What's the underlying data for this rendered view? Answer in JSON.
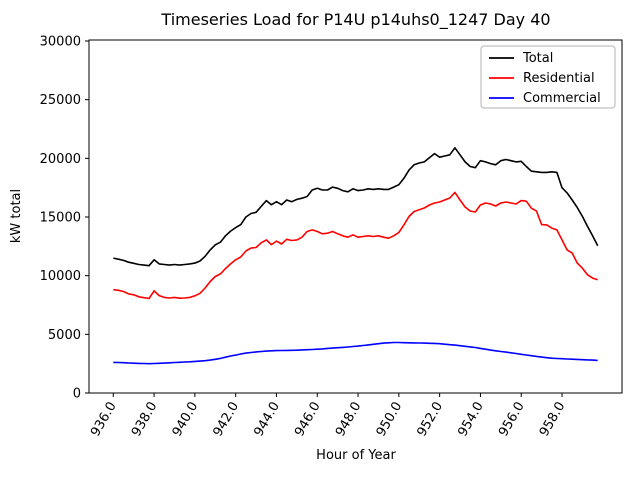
{
  "chart_data": {
    "type": "line",
    "title": "Timeseries Load for P14U p14uhs0_1247  Day 40",
    "xlabel": "Hour of Year",
    "ylabel": "kW total",
    "xlim": [
      934.81,
      960.94
    ],
    "ylim": [
      0,
      30100
    ],
    "grid": false,
    "legend_position": "upper right",
    "xticks": {
      "values": [
        936,
        938,
        940,
        942,
        944,
        946,
        948,
        950,
        952,
        954,
        956,
        958
      ],
      "labels": [
        "936.0",
        "938.0",
        "940.0",
        "942.0",
        "944.0",
        "946.0",
        "948.0",
        "950.0",
        "952.0",
        "954.0",
        "956.0",
        "958.0"
      ],
      "rotation": 60
    },
    "yticks": {
      "values": [
        0,
        5000,
        10000,
        15000,
        20000,
        25000,
        30000
      ],
      "labels": [
        "0",
        "5000",
        "10000",
        "15000",
        "20000",
        "25000",
        "30000"
      ]
    },
    "x": [
      936.0,
      936.25,
      936.5,
      936.75,
      937.0,
      937.25,
      937.5,
      937.75,
      938.0,
      938.25,
      938.5,
      938.75,
      939.0,
      939.25,
      939.5,
      939.75,
      940.0,
      940.25,
      940.5,
      940.75,
      941.0,
      941.25,
      941.5,
      941.75,
      942.0,
      942.25,
      942.5,
      942.75,
      943.0,
      943.25,
      943.5,
      943.75,
      944.0,
      944.25,
      944.5,
      944.75,
      945.0,
      945.25,
      945.5,
      945.75,
      946.0,
      946.25,
      946.5,
      946.75,
      947.0,
      947.25,
      947.5,
      947.75,
      948.0,
      948.25,
      948.5,
      948.75,
      949.0,
      949.25,
      949.5,
      949.75,
      950.0,
      950.25,
      950.5,
      950.75,
      951.0,
      951.25,
      951.5,
      951.75,
      952.0,
      952.25,
      952.5,
      952.75,
      953.0,
      953.25,
      953.5,
      953.75,
      954.0,
      954.25,
      954.5,
      954.75,
      955.0,
      955.25,
      955.5,
      955.75,
      956.0,
      956.25,
      956.5,
      956.75,
      957.0,
      957.25,
      957.5,
      957.75,
      958.0,
      958.25,
      958.5,
      958.75,
      959.0,
      959.25,
      959.5,
      959.75
    ],
    "series": [
      {
        "name": "Total",
        "color": "#000000",
        "values": [
          11500,
          11400,
          11300,
          11150,
          11050,
          10950,
          10900,
          10850,
          11350,
          11000,
          10950,
          10900,
          10950,
          10900,
          10950,
          11000,
          11070,
          11250,
          11650,
          12200,
          12630,
          12850,
          13400,
          13800,
          14100,
          14350,
          15000,
          15300,
          15400,
          15900,
          16400,
          16050,
          16300,
          16050,
          16450,
          16300,
          16500,
          16600,
          16750,
          17300,
          17450,
          17300,
          17300,
          17550,
          17450,
          17250,
          17150,
          17400,
          17250,
          17300,
          17400,
          17350,
          17400,
          17350,
          17350,
          17550,
          17750,
          18300,
          19000,
          19450,
          19600,
          19700,
          20050,
          20400,
          20100,
          20200,
          20300,
          20900,
          20300,
          19700,
          19300,
          19200,
          19800,
          19700,
          19550,
          19450,
          19800,
          19900,
          19800,
          19700,
          19750,
          19300,
          18900,
          18850,
          18800,
          18800,
          18850,
          18800,
          17500,
          17050,
          16450,
          15800,
          15050,
          14200,
          13400,
          12550
        ]
      },
      {
        "name": "Residential",
        "color": "#ff0000",
        "values": [
          8800,
          8750,
          8650,
          8450,
          8370,
          8200,
          8120,
          8050,
          8700,
          8300,
          8150,
          8100,
          8150,
          8080,
          8100,
          8150,
          8280,
          8500,
          8950,
          9500,
          9930,
          10150,
          10600,
          11000,
          11350,
          11600,
          12100,
          12350,
          12400,
          12800,
          13050,
          12650,
          12950,
          12700,
          13100,
          13000,
          13050,
          13280,
          13760,
          13900,
          13760,
          13570,
          13620,
          13760,
          13570,
          13400,
          13280,
          13480,
          13280,
          13340,
          13400,
          13340,
          13400,
          13280,
          13190,
          13400,
          13680,
          14330,
          15040,
          15470,
          15610,
          15770,
          16020,
          16190,
          16280,
          16450,
          16620,
          17100,
          16450,
          15850,
          15510,
          15430,
          16020,
          16190,
          16110,
          15940,
          16190,
          16280,
          16190,
          16110,
          16400,
          16350,
          15750,
          15500,
          14350,
          14330,
          14050,
          13900,
          13050,
          12200,
          11920,
          11070,
          10640,
          10070,
          9790,
          9650
        ]
      },
      {
        "name": "Commercial",
        "color": "#0000ff",
        "values": [
          2610,
          2600,
          2580,
          2560,
          2540,
          2520,
          2510,
          2500,
          2510,
          2530,
          2550,
          2570,
          2600,
          2620,
          2640,
          2660,
          2690,
          2720,
          2750,
          2800,
          2870,
          2950,
          3050,
          3150,
          3230,
          3320,
          3400,
          3450,
          3500,
          3540,
          3570,
          3600,
          3610,
          3620,
          3630,
          3640,
          3650,
          3670,
          3690,
          3710,
          3730,
          3760,
          3800,
          3830,
          3860,
          3890,
          3920,
          3960,
          4000,
          4050,
          4100,
          4150,
          4200,
          4250,
          4280,
          4300,
          4300,
          4290,
          4280,
          4270,
          4260,
          4250,
          4240,
          4230,
          4200,
          4160,
          4120,
          4080,
          4030,
          3980,
          3930,
          3880,
          3800,
          3730,
          3660,
          3600,
          3540,
          3490,
          3430,
          3370,
          3300,
          3240,
          3180,
          3120,
          3060,
          3010,
          2970,
          2940,
          2920,
          2900,
          2880,
          2860,
          2840,
          2820,
          2800,
          2780
        ]
      }
    ]
  }
}
